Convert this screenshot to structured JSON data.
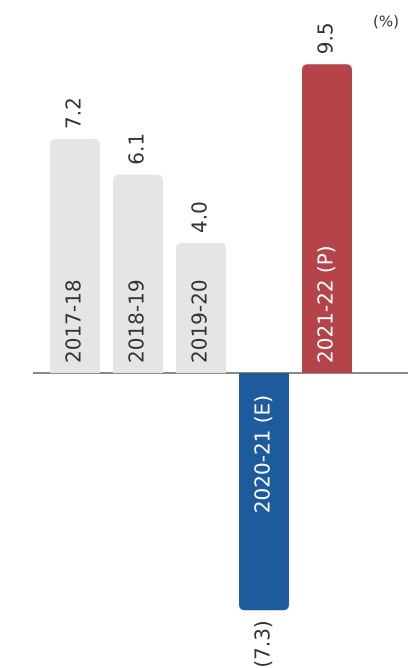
{
  "chart_data": {
    "type": "bar",
    "unit": "(%)",
    "categories": [
      "2017-18",
      "2018-19",
      "2019-20",
      "2020-21 (E)",
      "2021-22 (P)"
    ],
    "values": [
      7.2,
      6.1,
      4.0,
      -7.3,
      9.5
    ],
    "value_labels": [
      "7.2",
      "6.1",
      "4.0",
      "(7.3)",
      "9.5"
    ],
    "colors": [
      "#e4e5e7",
      "#e4e5e7",
      "#e4e5e7",
      "#1d5b9c",
      "#b4434a"
    ]
  }
}
